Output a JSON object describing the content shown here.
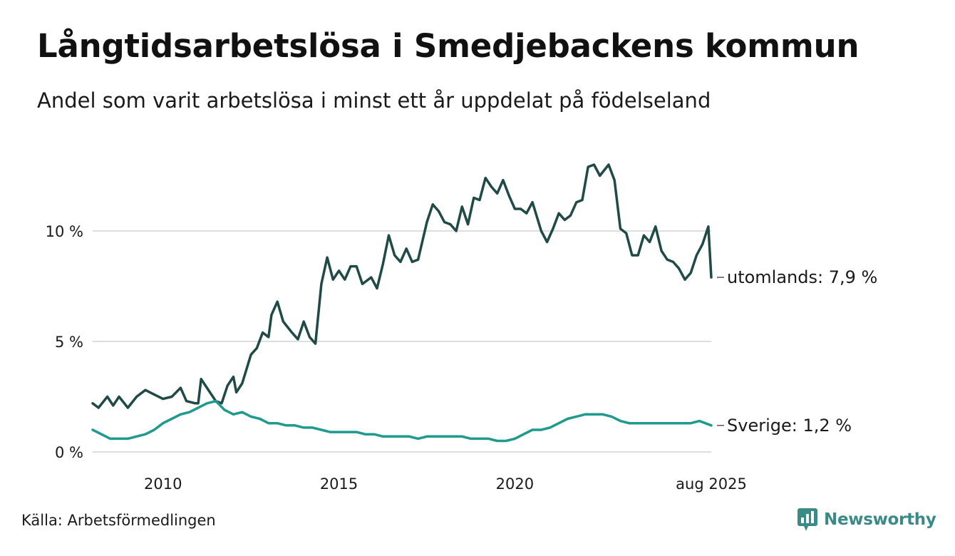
{
  "title": "Långtidsarbetslösa i Smedjebackens kommun",
  "subtitle": "Andel som varit arbetslösa i minst ett år uppdelat på födelseland",
  "source": "Källa: Arbetsförmedlingen",
  "brand": "Newsworthy",
  "colors": {
    "utomlands": "#1f4a45",
    "sverige": "#1f9a8c",
    "grid": "#dedede",
    "brand": "#3a8a88"
  },
  "chart_data": {
    "type": "line",
    "x_start": "2008-01",
    "x_end": "2025-08",
    "ylim": [
      0,
      14
    ],
    "y_ticks": [
      {
        "value": 0,
        "label": "0 %"
      },
      {
        "value": 5,
        "label": "5 %"
      },
      {
        "value": 10,
        "label": "10 %"
      }
    ],
    "x_ticks": [
      {
        "date": "2010-01",
        "label": "2010"
      },
      {
        "date": "2015-01",
        "label": "2015"
      },
      {
        "date": "2020-01",
        "label": "2020"
      },
      {
        "date": "2025-08",
        "label": "aug 2025"
      }
    ],
    "series": [
      {
        "key": "utomlands",
        "end_label": "utomlands: 7,9 %",
        "points": [
          [
            "2008-01",
            2.2
          ],
          [
            "2008-03",
            2.0
          ],
          [
            "2008-06",
            2.5
          ],
          [
            "2008-08",
            2.1
          ],
          [
            "2008-10",
            2.5
          ],
          [
            "2009-01",
            2.0
          ],
          [
            "2009-04",
            2.5
          ],
          [
            "2009-07",
            2.8
          ],
          [
            "2009-10",
            2.6
          ],
          [
            "2010-01",
            2.4
          ],
          [
            "2010-04",
            2.5
          ],
          [
            "2010-07",
            2.9
          ],
          [
            "2010-09",
            2.3
          ],
          [
            "2010-12",
            2.2
          ],
          [
            "2011-01",
            2.2
          ],
          [
            "2011-02",
            3.3
          ],
          [
            "2011-04",
            2.9
          ],
          [
            "2011-07",
            2.3
          ],
          [
            "2011-09",
            2.2
          ],
          [
            "2011-11",
            3.0
          ],
          [
            "2012-01",
            3.4
          ],
          [
            "2012-02",
            2.7
          ],
          [
            "2012-04",
            3.1
          ],
          [
            "2012-07",
            4.4
          ],
          [
            "2012-09",
            4.7
          ],
          [
            "2012-11",
            5.4
          ],
          [
            "2013-01",
            5.2
          ],
          [
            "2013-02",
            6.2
          ],
          [
            "2013-04",
            6.8
          ],
          [
            "2013-06",
            5.9
          ],
          [
            "2013-09",
            5.4
          ],
          [
            "2013-11",
            5.1
          ],
          [
            "2014-01",
            5.9
          ],
          [
            "2014-03",
            5.2
          ],
          [
            "2014-05",
            4.9
          ],
          [
            "2014-07",
            7.6
          ],
          [
            "2014-09",
            8.8
          ],
          [
            "2014-11",
            7.8
          ],
          [
            "2015-01",
            8.2
          ],
          [
            "2015-03",
            7.8
          ],
          [
            "2015-05",
            8.4
          ],
          [
            "2015-07",
            8.4
          ],
          [
            "2015-09",
            7.6
          ],
          [
            "2015-12",
            7.9
          ],
          [
            "2016-02",
            7.4
          ],
          [
            "2016-04",
            8.5
          ],
          [
            "2016-06",
            9.8
          ],
          [
            "2016-08",
            8.9
          ],
          [
            "2016-10",
            8.6
          ],
          [
            "2016-12",
            9.2
          ],
          [
            "2017-02",
            8.6
          ],
          [
            "2017-04",
            8.7
          ],
          [
            "2017-07",
            10.4
          ],
          [
            "2017-09",
            11.2
          ],
          [
            "2017-11",
            10.9
          ],
          [
            "2018-01",
            10.4
          ],
          [
            "2018-03",
            10.3
          ],
          [
            "2018-05",
            10.0
          ],
          [
            "2018-07",
            11.1
          ],
          [
            "2018-09",
            10.3
          ],
          [
            "2018-11",
            11.5
          ],
          [
            "2019-01",
            11.4
          ],
          [
            "2019-03",
            12.4
          ],
          [
            "2019-05",
            12.0
          ],
          [
            "2019-07",
            11.7
          ],
          [
            "2019-09",
            12.3
          ],
          [
            "2019-11",
            11.6
          ],
          [
            "2020-01",
            11.0
          ],
          [
            "2020-03",
            11.0
          ],
          [
            "2020-05",
            10.8
          ],
          [
            "2020-07",
            11.3
          ],
          [
            "2020-10",
            10.0
          ],
          [
            "2020-12",
            9.5
          ],
          [
            "2021-02",
            10.1
          ],
          [
            "2021-04",
            10.8
          ],
          [
            "2021-06",
            10.5
          ],
          [
            "2021-08",
            10.7
          ],
          [
            "2021-10",
            11.3
          ],
          [
            "2021-12",
            11.4
          ],
          [
            "2022-02",
            12.9
          ],
          [
            "2022-04",
            13.0
          ],
          [
            "2022-06",
            12.5
          ],
          [
            "2022-09",
            13.0
          ],
          [
            "2022-11",
            12.3
          ],
          [
            "2023-01",
            10.1
          ],
          [
            "2023-03",
            9.9
          ],
          [
            "2023-05",
            8.9
          ],
          [
            "2023-07",
            8.9
          ],
          [
            "2023-09",
            9.8
          ],
          [
            "2023-11",
            9.5
          ],
          [
            "2024-01",
            10.2
          ],
          [
            "2024-03",
            9.1
          ],
          [
            "2024-05",
            8.7
          ],
          [
            "2024-07",
            8.6
          ],
          [
            "2024-09",
            8.3
          ],
          [
            "2024-11",
            7.8
          ],
          [
            "2025-01",
            8.1
          ],
          [
            "2025-03",
            8.9
          ],
          [
            "2025-05",
            9.4
          ],
          [
            "2025-07",
            10.2
          ],
          [
            "2025-08",
            7.9
          ]
        ]
      },
      {
        "key": "sverige",
        "end_label": "Sverige: 1,2 %",
        "points": [
          [
            "2008-01",
            1.0
          ],
          [
            "2008-04",
            0.8
          ],
          [
            "2008-07",
            0.6
          ],
          [
            "2008-10",
            0.6
          ],
          [
            "2009-01",
            0.6
          ],
          [
            "2009-04",
            0.7
          ],
          [
            "2009-07",
            0.8
          ],
          [
            "2009-10",
            1.0
          ],
          [
            "2010-01",
            1.3
          ],
          [
            "2010-04",
            1.5
          ],
          [
            "2010-07",
            1.7
          ],
          [
            "2010-10",
            1.8
          ],
          [
            "2011-01",
            2.0
          ],
          [
            "2011-04",
            2.2
          ],
          [
            "2011-07",
            2.3
          ],
          [
            "2011-10",
            1.9
          ],
          [
            "2012-01",
            1.7
          ],
          [
            "2012-04",
            1.8
          ],
          [
            "2012-07",
            1.6
          ],
          [
            "2012-10",
            1.5
          ],
          [
            "2013-01",
            1.3
          ],
          [
            "2013-04",
            1.3
          ],
          [
            "2013-07",
            1.2
          ],
          [
            "2013-10",
            1.2
          ],
          [
            "2014-01",
            1.1
          ],
          [
            "2014-04",
            1.1
          ],
          [
            "2014-07",
            1.0
          ],
          [
            "2014-10",
            0.9
          ],
          [
            "2015-01",
            0.9
          ],
          [
            "2015-04",
            0.9
          ],
          [
            "2015-07",
            0.9
          ],
          [
            "2015-10",
            0.8
          ],
          [
            "2016-01",
            0.8
          ],
          [
            "2016-04",
            0.7
          ],
          [
            "2016-07",
            0.7
          ],
          [
            "2016-10",
            0.7
          ],
          [
            "2017-01",
            0.7
          ],
          [
            "2017-04",
            0.6
          ],
          [
            "2017-07",
            0.7
          ],
          [
            "2017-10",
            0.7
          ],
          [
            "2018-01",
            0.7
          ],
          [
            "2018-04",
            0.7
          ],
          [
            "2018-07",
            0.7
          ],
          [
            "2018-10",
            0.6
          ],
          [
            "2019-01",
            0.6
          ],
          [
            "2019-04",
            0.6
          ],
          [
            "2019-07",
            0.5
          ],
          [
            "2019-10",
            0.5
          ],
          [
            "2020-01",
            0.6
          ],
          [
            "2020-04",
            0.8
          ],
          [
            "2020-07",
            1.0
          ],
          [
            "2020-10",
            1.0
          ],
          [
            "2021-01",
            1.1
          ],
          [
            "2021-04",
            1.3
          ],
          [
            "2021-07",
            1.5
          ],
          [
            "2021-10",
            1.6
          ],
          [
            "2022-01",
            1.7
          ],
          [
            "2022-04",
            1.7
          ],
          [
            "2022-07",
            1.7
          ],
          [
            "2022-10",
            1.6
          ],
          [
            "2023-01",
            1.4
          ],
          [
            "2023-04",
            1.3
          ],
          [
            "2023-07",
            1.3
          ],
          [
            "2023-10",
            1.3
          ],
          [
            "2024-01",
            1.3
          ],
          [
            "2024-04",
            1.3
          ],
          [
            "2024-07",
            1.3
          ],
          [
            "2024-10",
            1.3
          ],
          [
            "2025-01",
            1.3
          ],
          [
            "2025-04",
            1.4
          ],
          [
            "2025-08",
            1.2
          ]
        ]
      }
    ]
  }
}
